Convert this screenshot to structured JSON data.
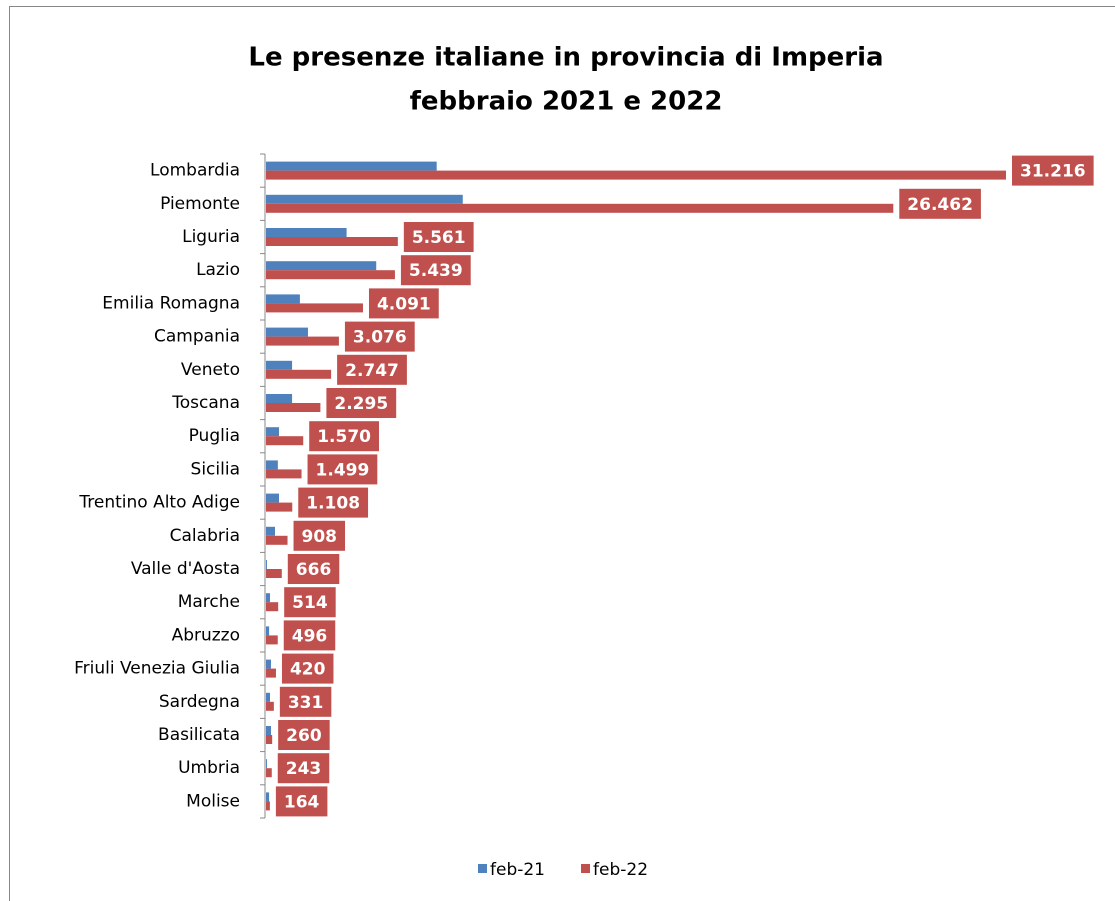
{
  "chart_data": {
    "type": "barh",
    "title": [
      "Le presenze italiane in provincia di Imperia",
      "febbraio 2021 e 2022"
    ],
    "categories": [
      "Lombardia",
      "Piemonte",
      "Liguria",
      "Lazio",
      "Emilia Romagna",
      "Campania",
      "Veneto",
      "Toscana",
      "Puglia",
      "Sicilia",
      "Trentino Alto Adige",
      "Calabria",
      "Valle d'Aosta",
      "Marche",
      "Abruzzo",
      "Friuli Venezia Giulia",
      "Sardegna",
      "Basilicata",
      "Umbria",
      "Molise"
    ],
    "series": [
      {
        "name": "feb-21",
        "color": "#4f81bd",
        "values": [
          7200,
          8300,
          3400,
          4650,
          1430,
          1770,
          1100,
          1100,
          550,
          500,
          550,
          380,
          40,
          170,
          130,
          210,
          170,
          210,
          40,
          130
        ]
      },
      {
        "name": "feb-22",
        "color": "#c0504d",
        "values": [
          31216,
          26462,
          5561,
          5439,
          4091,
          3076,
          2747,
          2295,
          1570,
          1499,
          1108,
          908,
          666,
          514,
          496,
          420,
          331,
          260,
          243,
          164
        ],
        "value_labels": [
          "31.216",
          "26.462",
          "5.561",
          "5.439",
          "4.091",
          "3.076",
          "2.747",
          "2.295",
          "1.570",
          "1.499",
          "1.108",
          "908",
          "666",
          "514",
          "496",
          "420",
          "331",
          "260",
          "243",
          "164"
        ]
      }
    ],
    "legend": "bottom"
  }
}
